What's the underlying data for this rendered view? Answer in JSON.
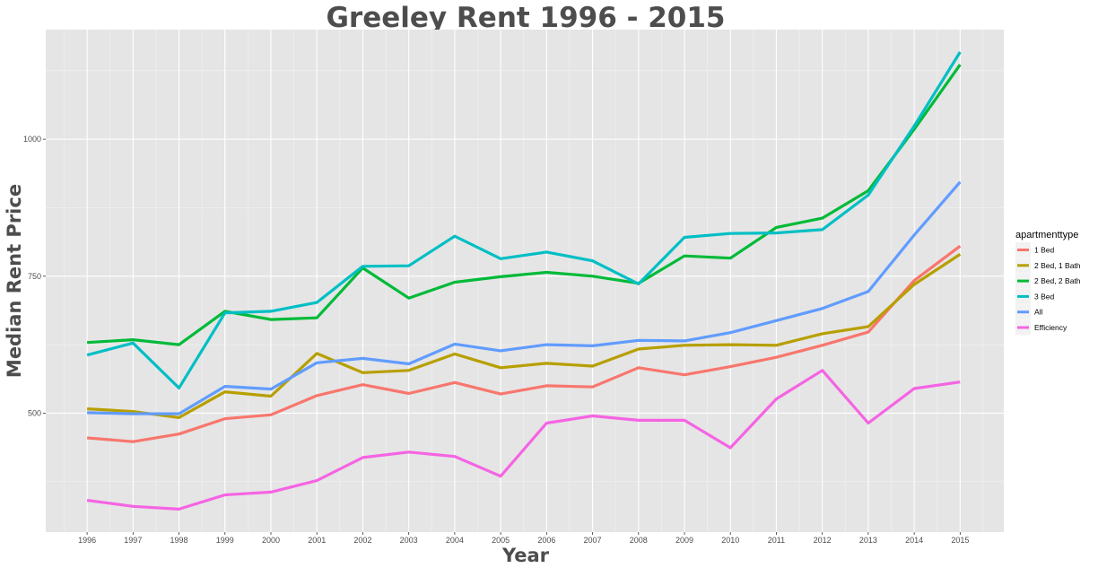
{
  "chart_data": {
    "type": "line",
    "title": "Greeley Rent 1996 - 2015",
    "xlabel": "Year",
    "ylabel": "Median Rent Price",
    "x": [
      1996,
      1997,
      1998,
      1999,
      2000,
      2001,
      2002,
      2003,
      2004,
      2005,
      2006,
      2007,
      2008,
      2009,
      2010,
      2011,
      2012,
      2013,
      2014,
      2015
    ],
    "xlim": [
      1995.1,
      2015.95
    ],
    "ylim": [
      283,
      1200
    ],
    "yticks": [
      500,
      750,
      1000
    ],
    "grid": true,
    "legend": {
      "title": "apartmenttype",
      "position": "right"
    },
    "series": [
      {
        "name": "1 Bed",
        "color": "#F8766D",
        "values": [
          455,
          448,
          462,
          490,
          497,
          532,
          552,
          536,
          556,
          535,
          550,
          548,
          583,
          570,
          585,
          602,
          624,
          648,
          742,
          805
        ]
      },
      {
        "name": "2 Bed, 1 Bath",
        "color": "#B79F00",
        "values": [
          508,
          503,
          492,
          539,
          531,
          609,
          574,
          578,
          608,
          583,
          591,
          586,
          617,
          624,
          625,
          624,
          645,
          658,
          735,
          790
        ]
      },
      {
        "name": "2 Bed, 2 Bath",
        "color": "#00BA38",
        "values": [
          629,
          634,
          625,
          686,
          671,
          674,
          765,
          710,
          739,
          749,
          757,
          750,
          737,
          787,
          783,
          839,
          856,
          906,
          1018,
          1136
        ]
      },
      {
        "name": "3 Bed",
        "color": "#00BFC4",
        "values": [
          606,
          628,
          546,
          683,
          686,
          702,
          768,
          769,
          823,
          782,
          794,
          778,
          736,
          821,
          828,
          829,
          835,
          898,
          1024,
          1159
        ]
      },
      {
        "name": "All",
        "color": "#619CFF",
        "values": [
          501,
          499,
          499,
          549,
          544,
          592,
          600,
          590,
          626,
          614,
          625,
          623,
          633,
          632,
          647,
          669,
          691,
          722,
          825,
          922
        ]
      },
      {
        "name": "Efficiency",
        "color": "#F564E3",
        "values": [
          341,
          330,
          325,
          351,
          356,
          377,
          419,
          429,
          421,
          385,
          482,
          495,
          487,
          487,
          437,
          526,
          578,
          482,
          545,
          557
        ]
      }
    ]
  }
}
